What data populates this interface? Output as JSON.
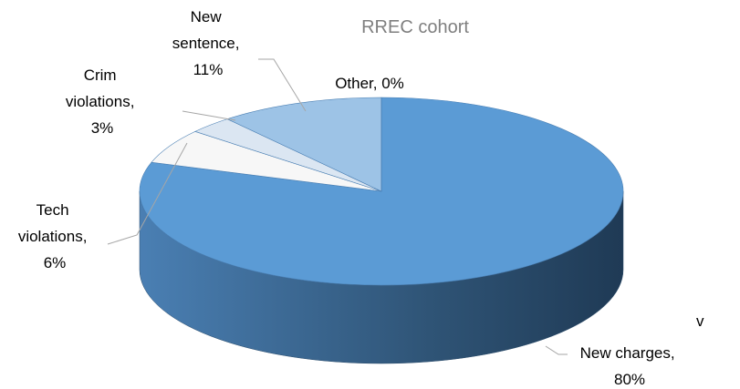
{
  "chart_data": {
    "type": "pie",
    "title": "RREC cohort",
    "values": [
      80,
      6,
      3,
      11,
      0
    ],
    "value_labels": [
      "New charges, 80%",
      "Tech violations, 6%",
      "Crim violations, 3%",
      "New sentence, 11%",
      "Other, 0%"
    ],
    "colors": [
      "#5b9bd5",
      "#f7f7f7",
      "#dbe6f2",
      "#9dc3e6",
      "#bdd7ee"
    ],
    "annotations": [
      "v"
    ]
  }
}
